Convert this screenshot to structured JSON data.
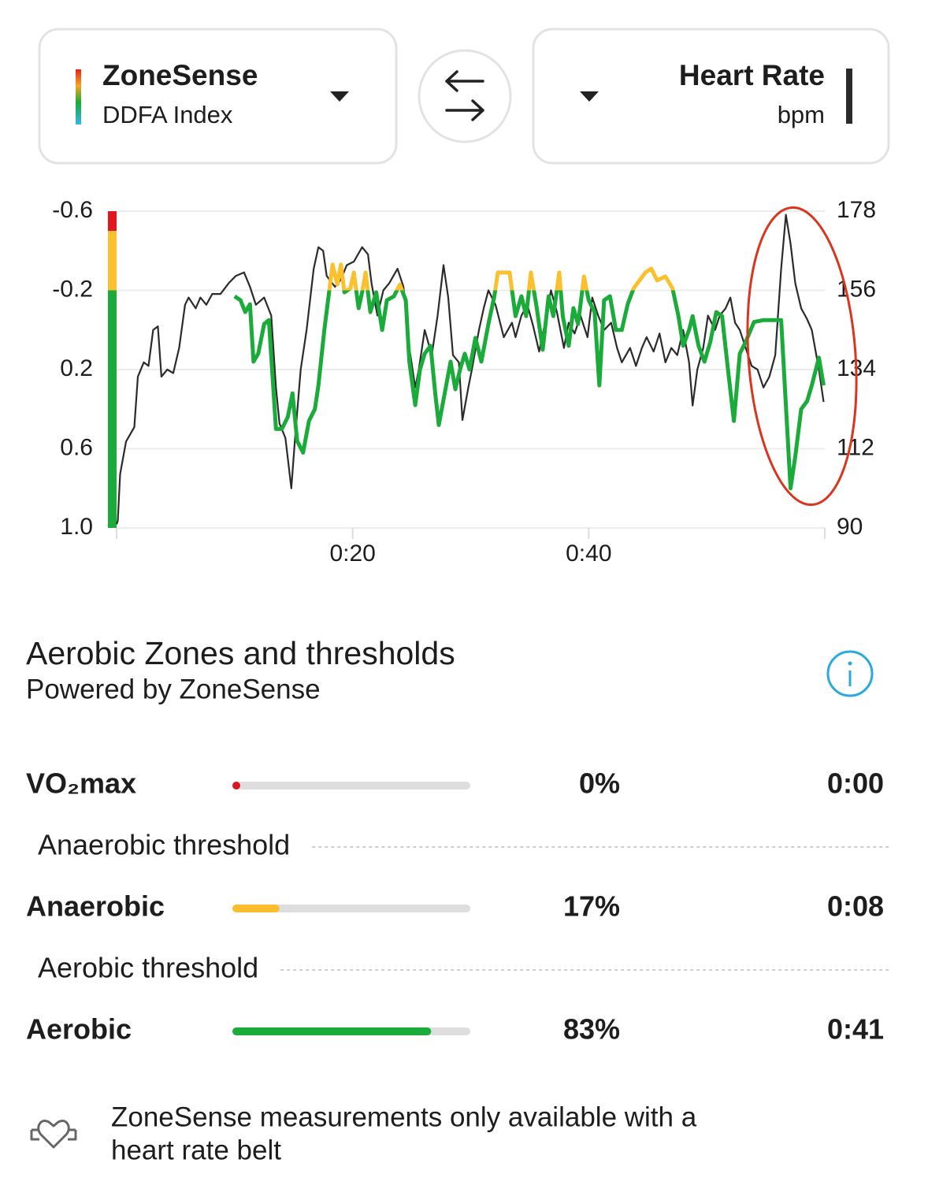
{
  "selectors": {
    "left": {
      "title": "ZoneSense",
      "subtitle": "DDFA Index"
    },
    "right": {
      "title": "Heart Rate",
      "subtitle": "bpm"
    }
  },
  "chart_data": {
    "type": "line",
    "xlim": [
      0,
      60
    ],
    "xticks": [
      {
        "value": 20,
        "label": "0:20"
      },
      {
        "value": 40,
        "label": "0:40"
      }
    ],
    "ylim": [
      1.0,
      -0.6
    ],
    "yticks": [
      -0.6,
      -0.2,
      0.2,
      0.6,
      {
        "value": 1.0,
        "label": "1.0"
      }
    ],
    "y2lim": [
      90,
      178
    ],
    "y2ticks": [
      90,
      112,
      134,
      156,
      178
    ],
    "grid": true,
    "zone_bands": [
      {
        "from": -0.6,
        "to": -0.5,
        "color": "#e3161d"
      },
      {
        "from": -0.5,
        "to": -0.2,
        "color": "#fbc02d"
      },
      {
        "from": -0.2,
        "to": 1.0,
        "color": "#1aab3a"
      }
    ],
    "series": [
      {
        "name": "ZoneSense",
        "unit": "DDFA Index",
        "axis": "y",
        "color": "#1aab3a",
        "color_by": "zone_bands",
        "x": [
          10,
          10.5,
          10.9,
          11.3,
          11.6,
          12,
          12.5,
          12.9,
          13.5,
          14,
          14.5,
          14.9,
          15.3,
          15.8,
          16.3,
          16.8,
          17.1,
          17.6,
          18,
          18.3,
          18.7,
          19,
          19.3,
          19.8,
          20.1,
          20.5,
          20.8,
          21.1,
          21.5,
          22,
          22.5,
          22.9,
          23.5,
          24,
          24.5,
          24.8,
          25.3,
          25.7,
          26.1,
          26.6,
          27,
          27.3,
          27.8,
          28.3,
          28.7,
          29.1,
          29.5,
          29.9,
          30.4,
          30.9,
          31.5,
          32,
          32.3,
          32.8,
          33.3,
          33.8,
          34.3,
          34.7,
          35.1,
          35.6,
          36.1,
          36.6,
          37,
          37.5,
          37.8,
          38.3,
          38.7,
          39.1,
          39.6,
          40,
          40.5,
          40.9,
          41.3,
          41.8,
          42.3,
          42.8,
          43.3,
          43.8,
          44.3,
          44.8,
          45.3,
          45.8,
          46.5,
          47.1,
          47.6,
          48,
          48.5,
          48.8,
          49.3,
          49.8,
          50.3,
          50.8,
          51.3,
          51.8,
          52.3,
          52.8,
          53.3,
          54,
          54.8,
          55.6,
          56.3,
          56.7,
          57.1,
          57.5,
          58,
          58.5,
          58.9,
          59.5,
          59.9
        ],
        "values": [
          -0.17,
          -0.15,
          -0.09,
          -0.13,
          0.16,
          0.12,
          -0.03,
          -0.05,
          0.5,
          0.5,
          0.44,
          0.32,
          0.56,
          0.62,
          0.46,
          0.4,
          0.28,
          0,
          -0.19,
          -0.33,
          -0.23,
          -0.33,
          -0.19,
          -0.21,
          -0.29,
          -0.11,
          -0.19,
          -0.29,
          -0.09,
          -0.19,
          0,
          -0.15,
          -0.17,
          -0.23,
          -0.15,
          0.16,
          0.38,
          0.2,
          0.12,
          0.08,
          0.32,
          0.48,
          0.32,
          0.16,
          0.3,
          0.2,
          0.12,
          0.2,
          0.04,
          0.16,
          -0.03,
          -0.17,
          -0.29,
          -0.29,
          -0.29,
          -0.07,
          -0.17,
          -0.07,
          -0.29,
          -0.11,
          0.1,
          -0.17,
          -0.07,
          -0.29,
          -0.07,
          0.08,
          -0.11,
          -0.03,
          -0.27,
          -0.15,
          -0.09,
          0.28,
          -0.15,
          -0.17,
          0,
          0,
          -0.13,
          -0.21,
          -0.25,
          -0.29,
          -0.31,
          -0.25,
          -0.27,
          -0.21,
          -0.07,
          0.08,
          0,
          -0.07,
          0.08,
          0.16,
          0.06,
          -0.09,
          -0.07,
          0.2,
          0.46,
          0.12,
          0.06,
          -0.04,
          -0.05,
          -0.05,
          -0.05,
          0.38,
          0.8,
          0.64,
          0.4,
          0.36,
          0.28,
          0.14,
          0.28
        ]
      },
      {
        "name": "Heart Rate",
        "unit": "bpm",
        "axis": "y2",
        "color": "#2b2b2b",
        "x": [
          0,
          0.1,
          0.3,
          0.8,
          1.5,
          1.8,
          2.3,
          2.7,
          3.1,
          3.5,
          3.8,
          4.3,
          4.8,
          5.3,
          5.8,
          6.1,
          6.7,
          7.1,
          7.6,
          8.1,
          8.8,
          9.5,
          10.1,
          10.8,
          11.3,
          11.8,
          12.5,
          13.1,
          13.5,
          13.8,
          14.3,
          14.8,
          15.1,
          15.6,
          16.1,
          16.7,
          17.1,
          17.5,
          17.8,
          18.5,
          19,
          19.5,
          20.1,
          20.8,
          21.3,
          21.6,
          22.1,
          22.6,
          23.1,
          23.8,
          24.3,
          24.8,
          25.3,
          25.6,
          26.1,
          26.7,
          27.2,
          27.7,
          28.1,
          28.5,
          29,
          29.3,
          29.8,
          30.1,
          30.7,
          31.1,
          31.5,
          32.1,
          32.8,
          33.5,
          33.8,
          34.3,
          34.8,
          35.3,
          35.8,
          36.3,
          36.8,
          37.3,
          37.9,
          38.3,
          38.8,
          39.3,
          39.9,
          40.3,
          40.8,
          41.3,
          41.9,
          42.4,
          42.8,
          43.5,
          44,
          44.5,
          44.9,
          45.5,
          46,
          46.5,
          47,
          47.5,
          48,
          48.5,
          48.8,
          49.2,
          49.7,
          50.1,
          50.7,
          51.1,
          51.6,
          52,
          52.4,
          52.8,
          53.3,
          53.8,
          54.3,
          54.8,
          55.3,
          55.8,
          56.3,
          56.7,
          57.1,
          57.5,
          58,
          58.5,
          58.9,
          59.5,
          59.9
        ],
        "values": [
          91,
          92,
          105,
          114,
          118,
          132,
          136,
          135,
          145,
          146,
          132,
          134,
          133,
          140,
          152,
          154,
          151,
          154,
          152,
          155,
          155,
          158,
          160,
          161,
          157,
          152,
          154,
          149,
          129,
          119,
          115,
          101,
          114,
          134,
          145,
          162,
          168,
          167,
          160,
          157,
          159,
          163,
          164,
          168,
          166,
          158,
          149,
          156,
          158,
          162,
          157,
          140,
          129,
          134,
          145,
          138,
          149,
          163,
          154,
          138,
          136,
          120,
          129,
          134,
          145,
          151,
          156,
          152,
          143,
          147,
          143,
          149,
          152,
          146,
          139,
          147,
          156,
          150,
          140,
          147,
          144,
          149,
          143,
          154,
          149,
          145,
          147,
          140,
          136,
          140,
          135,
          140,
          143,
          139,
          144,
          136,
          140,
          138,
          145,
          136,
          124,
          134,
          140,
          149,
          145,
          149,
          151,
          154,
          147,
          145,
          140,
          135,
          134,
          129,
          132,
          138,
          162,
          177,
          169,
          158,
          151,
          148,
          145,
          134,
          125
        ]
      }
    ]
  },
  "zones": {
    "title": "Aerobic Zones and thresholds",
    "subtitle": "Powered by ZoneSense",
    "rows": [
      {
        "name": "VO₂max",
        "color": "#d7191f",
        "percent": 0,
        "percent_label": "0%",
        "time": "0:00"
      },
      {
        "threshold": "Anaerobic threshold"
      },
      {
        "name": "Anaerobic",
        "color": "#fbbd2e",
        "percent": 17,
        "percent_label": "17%",
        "time": "0:08"
      },
      {
        "threshold": "Aerobic threshold"
      },
      {
        "name": "Aerobic",
        "color": "#1aab3a",
        "percent": 83,
        "percent_label": "83%",
        "time": "0:41"
      }
    ]
  },
  "footer": {
    "lines": [
      "ZoneSense measurements only available with a",
      "heart rate belt"
    ]
  }
}
